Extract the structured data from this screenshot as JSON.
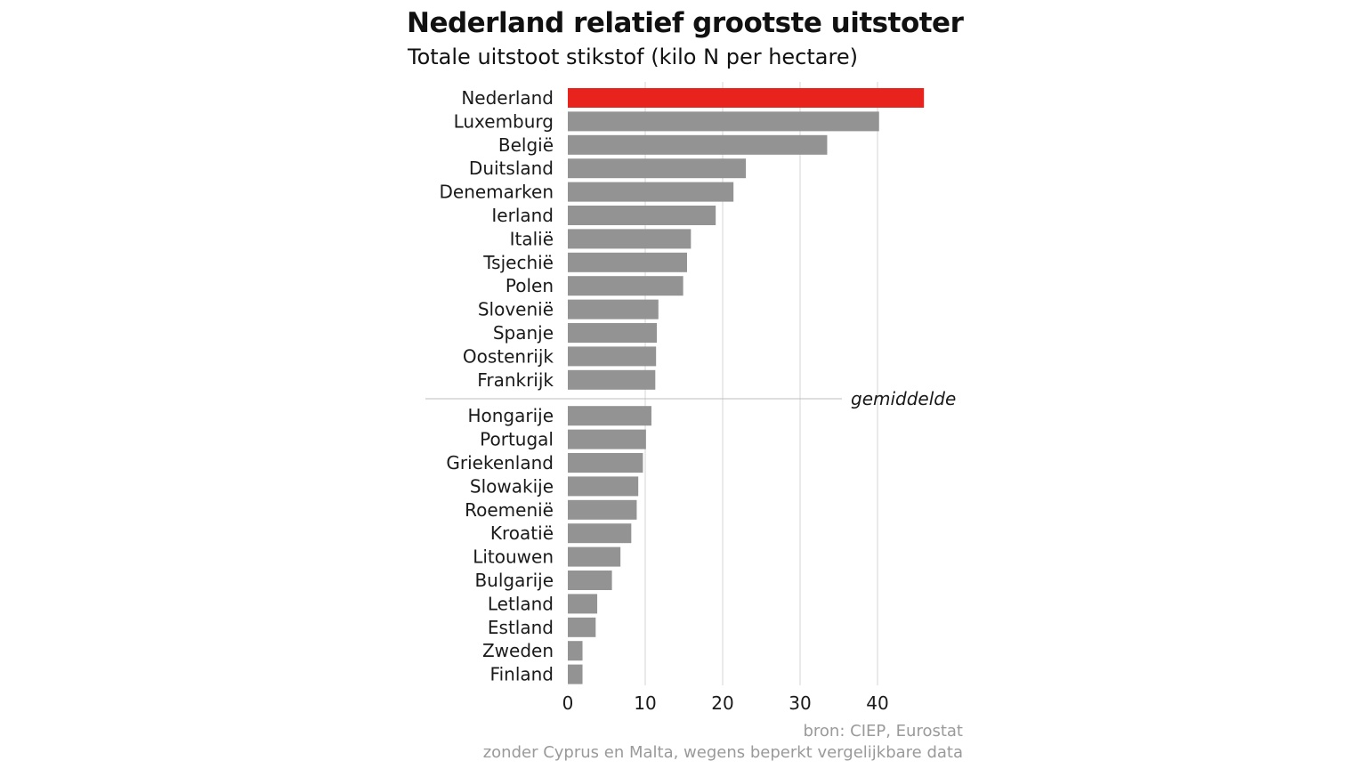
{
  "chart_data": {
    "type": "bar",
    "orientation": "horizontal",
    "title": "Nederland relatief grootste uitstoter",
    "subtitle": "Totale uitstoot stikstof (kilo N per hectare)",
    "categories": [
      "Nederland",
      "Luxemburg",
      "België",
      "Duitsland",
      "Denemarken",
      "Ierland",
      "Italië",
      "Tsjechië",
      "Polen",
      "Slovenië",
      "Spanje",
      "Oostenrijk",
      "Frankrijk",
      "Hongarije",
      "Portugal",
      "Griekenland",
      "Slowakije",
      "Roemenië",
      "Kroatië",
      "Litouwen",
      "Bulgarije",
      "Letland",
      "Estland",
      "Zweden",
      "Finland"
    ],
    "values": [
      46,
      40.2,
      33.5,
      23,
      21.4,
      19.1,
      15.9,
      15.4,
      14.9,
      11.7,
      11.5,
      11.4,
      11.3,
      10.8,
      10.1,
      9.7,
      9.1,
      8.9,
      8.2,
      6.8,
      5.7,
      3.8,
      3.6,
      1.9,
      1.9
    ],
    "highlight": {
      "category": "Nederland",
      "color": "#e8231d"
    },
    "bar_color": "#939393",
    "xlim": [
      0,
      46
    ],
    "xticks": [
      0,
      10,
      20,
      30,
      40
    ],
    "xtick_labels": [
      "0",
      "10",
      "20",
      "30",
      "40"
    ],
    "grid": "vertical",
    "average_marker": {
      "label": "gemiddelde",
      "after_category": "Frankrijk"
    }
  },
  "footer": {
    "source": "bron: CIEP, Eurostat",
    "note": "zonder Cyprus en Malta, wegens beperkt vergelijkbare data"
  }
}
